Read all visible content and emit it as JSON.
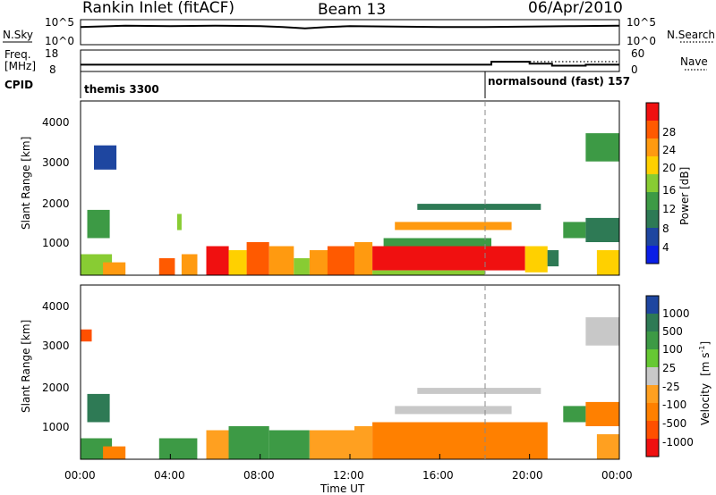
{
  "header": {
    "station": "Rankin Inlet (fitACF)",
    "beam": "Beam 13",
    "date": "06/Apr/2010"
  },
  "summary": {
    "nsky_label": "N.Sky",
    "nsky_ticks": [
      "10^5",
      "10^0"
    ],
    "nsearch_label": "N.Search",
    "nsearch_ticks": [
      "10^5",
      "10^0"
    ],
    "freq_label_line1": "Freq.",
    "freq_label_line2": "[MHz]",
    "freq_ticks": [
      "18",
      "8"
    ],
    "nave_label": "Nave",
    "nave_ticks": [
      "60",
      "0"
    ],
    "cpid_label": "CPID",
    "cpid_segments": [
      {
        "name": "themis 3300",
        "start_hour": 0
      },
      {
        "name": "normalsound (fast) 157",
        "start_hour": 18
      }
    ]
  },
  "axes": {
    "x_label": "Time UT",
    "x_ticks": [
      "00:00",
      "04:00",
      "08:00",
      "12:00",
      "16:00",
      "20:00",
      "00:00"
    ],
    "y_label": "Slant Range [km]",
    "y_ticks": [
      "1000",
      "2000",
      "3000",
      "4000"
    ],
    "power_label": "Power [dB]",
    "power_ticks": [
      "4",
      "8",
      "12",
      "16",
      "20",
      "24",
      "28"
    ],
    "velocity_label_prefix": "Velocity",
    "velocity_label_units": "[m s",
    "velocity_label_exp": "-1",
    "velocity_ticks": [
      "1000",
      "500",
      "100",
      "25",
      "-25",
      "-100",
      "-500",
      "-1000"
    ]
  },
  "colors": {
    "power_scale": [
      "#0a1ee6",
      "#1e46a0",
      "#2e7a55",
      "#3d9a45",
      "#88cc33",
      "#ffd000",
      "#ff9a10",
      "#ff5a00",
      "#f01010"
    ],
    "velocity_scale": [
      "#1e46a0",
      "#2e7a55",
      "#3d9a45",
      "#66c833",
      "#c8c8c8",
      "#ffa020",
      "#ff8000",
      "#ff5000",
      "#f01010"
    ]
  },
  "chart_data": [
    {
      "type": "line",
      "title": "N.Sky / N.Search",
      "x_unit": "hours UT",
      "x": [
        0,
        2,
        4,
        6,
        8,
        9,
        10,
        11,
        12,
        14,
        16,
        18,
        20,
        22,
        24
      ],
      "series": [
        {
          "values_log10": [
            3.6,
            3.9,
            3.8,
            3.9,
            3.8,
            3.6,
            3.3,
            3.6,
            3.8,
            3.7,
            3.6,
            3.6,
            3.7,
            3.8,
            3.9
          ]
        }
      ],
      "ylim": [
        0,
        5
      ]
    },
    {
      "type": "line",
      "title": "Freq. / Nave",
      "x_unit": "hours UT",
      "series": [
        {
          "values": [
            [
              0,
              11
            ],
            [
              18,
              11
            ],
            [
              18.3,
              12.5
            ],
            [
              20,
              11.5
            ],
            [
              21,
              10.5
            ],
            [
              22.5,
              11
            ],
            [
              24,
              11
            ]
          ]
        }
      ],
      "ylim": [
        8,
        18
      ]
    },
    {
      "type": "heatmap",
      "title": "Power",
      "x_unit": "hours UT",
      "y_unit": "km",
      "xlim": [
        0,
        24
      ],
      "ylim": [
        180,
        4500
      ],
      "clim": [
        0,
        30
      ],
      "blocks": [
        {
          "t0": 0.0,
          "t1": 1.4,
          "r0": 180,
          "r1": 700,
          "v": 14
        },
        {
          "t0": 0.3,
          "t1": 1.3,
          "r0": 1100,
          "r1": 1800,
          "v": 10
        },
        {
          "t0": 0.6,
          "t1": 1.6,
          "r0": 2800,
          "r1": 3400,
          "v": 6
        },
        {
          "t0": 1.0,
          "t1": 2.0,
          "r0": 180,
          "r1": 500,
          "v": 22
        },
        {
          "t0": 3.5,
          "t1": 4.2,
          "r0": 180,
          "r1": 600,
          "v": 24
        },
        {
          "t0": 4.3,
          "t1": 4.5,
          "r0": 1300,
          "r1": 1700,
          "v": 16
        },
        {
          "t0": 4.5,
          "t1": 5.2,
          "r0": 180,
          "r1": 700,
          "v": 20
        },
        {
          "t0": 5.6,
          "t1": 6.6,
          "r0": 180,
          "r1": 900,
          "v": 28
        },
        {
          "t0": 6.6,
          "t1": 7.4,
          "r0": 180,
          "r1": 800,
          "v": 18
        },
        {
          "t0": 7.4,
          "t1": 8.4,
          "r0": 180,
          "r1": 1000,
          "v": 24
        },
        {
          "t0": 8.4,
          "t1": 9.5,
          "r0": 180,
          "r1": 900,
          "v": 20
        },
        {
          "t0": 9.5,
          "t1": 10.2,
          "r0": 180,
          "r1": 600,
          "v": 14
        },
        {
          "t0": 10.2,
          "t1": 11.0,
          "r0": 180,
          "r1": 800,
          "v": 22
        },
        {
          "t0": 11.0,
          "t1": 12.2,
          "r0": 180,
          "r1": 900,
          "v": 26
        },
        {
          "t0": 12.2,
          "t1": 13.0,
          "r0": 180,
          "r1": 1000,
          "v": 20
        },
        {
          "t0": 13.0,
          "t1": 18.0,
          "r0": 300,
          "r1": 900,
          "v": 29
        },
        {
          "t0": 13.0,
          "t1": 18.0,
          "r0": 180,
          "r1": 300,
          "v": 16
        },
        {
          "t0": 13.5,
          "t1": 18.3,
          "r0": 900,
          "r1": 1100,
          "v": 12
        },
        {
          "t0": 14.0,
          "t1": 19.2,
          "r0": 1300,
          "r1": 1500,
          "v": 22
        },
        {
          "t0": 15.0,
          "t1": 20.5,
          "r0": 1800,
          "r1": 1950,
          "v": 8
        },
        {
          "t0": 18.0,
          "t1": 19.8,
          "r0": 300,
          "r1": 900,
          "v": 28
        },
        {
          "t0": 19.8,
          "t1": 20.8,
          "r0": 250,
          "r1": 900,
          "v": 18
        },
        {
          "t0": 20.8,
          "t1": 21.3,
          "r0": 400,
          "r1": 800,
          "v": 8
        },
        {
          "t0": 22.5,
          "t1": 24.0,
          "r0": 1000,
          "r1": 1600,
          "v": 8
        },
        {
          "t0": 22.5,
          "t1": 24.0,
          "r0": 3000,
          "r1": 3700,
          "v": 10
        },
        {
          "t0": 23.0,
          "t1": 24.0,
          "r0": 180,
          "r1": 800,
          "v": 18
        },
        {
          "t0": 21.5,
          "t1": 22.5,
          "r0": 1100,
          "r1": 1500,
          "v": 10
        }
      ]
    },
    {
      "type": "heatmap",
      "title": "Velocity",
      "x_unit": "hours UT",
      "y_unit": "km",
      "xlim": [
        0,
        24
      ],
      "ylim": [
        180,
        4500
      ],
      "clim": [
        -1000,
        1000
      ],
      "blocks": [
        {
          "t0": 0.0,
          "t1": 1.4,
          "r0": 180,
          "r1": 700,
          "v": 50
        },
        {
          "t0": 0.3,
          "t1": 1.3,
          "r0": 1100,
          "r1": 1800,
          "v": 150
        },
        {
          "t0": 0.0,
          "t1": 0.5,
          "r0": 3100,
          "r1": 3400,
          "v": -700
        },
        {
          "t0": 1.0,
          "t1": 2.0,
          "r0": 180,
          "r1": 500,
          "v": -120
        },
        {
          "t0": 3.5,
          "t1": 5.2,
          "r0": 180,
          "r1": 700,
          "v": 80
        },
        {
          "t0": 5.6,
          "t1": 6.6,
          "r0": 180,
          "r1": 900,
          "v": -80
        },
        {
          "t0": 6.6,
          "t1": 8.4,
          "r0": 180,
          "r1": 1000,
          "v": 60
        },
        {
          "t0": 8.4,
          "t1": 10.2,
          "r0": 180,
          "r1": 900,
          "v": 40
        },
        {
          "t0": 10.2,
          "t1": 12.2,
          "r0": 180,
          "r1": 900,
          "v": -80
        },
        {
          "t0": 12.2,
          "t1": 13.0,
          "r0": 180,
          "r1": 1000,
          "v": -60
        },
        {
          "t0": 13.0,
          "t1": 20.8,
          "r0": 180,
          "r1": 1100,
          "v": -200
        },
        {
          "t0": 14.0,
          "t1": 19.2,
          "r0": 1300,
          "r1": 1500,
          "v": 0
        },
        {
          "t0": 15.0,
          "t1": 20.5,
          "r0": 1800,
          "r1": 1950,
          "v": 0
        },
        {
          "t0": 22.5,
          "t1": 24.0,
          "r0": 1000,
          "r1": 1600,
          "v": -150
        },
        {
          "t0": 22.5,
          "t1": 24.0,
          "r0": 3000,
          "r1": 3700,
          "v": 0
        },
        {
          "t0": 23.0,
          "t1": 24.0,
          "r0": 180,
          "r1": 800,
          "v": -60
        },
        {
          "t0": 21.5,
          "t1": 22.5,
          "r0": 1100,
          "r1": 1500,
          "v": 60
        }
      ]
    }
  ]
}
